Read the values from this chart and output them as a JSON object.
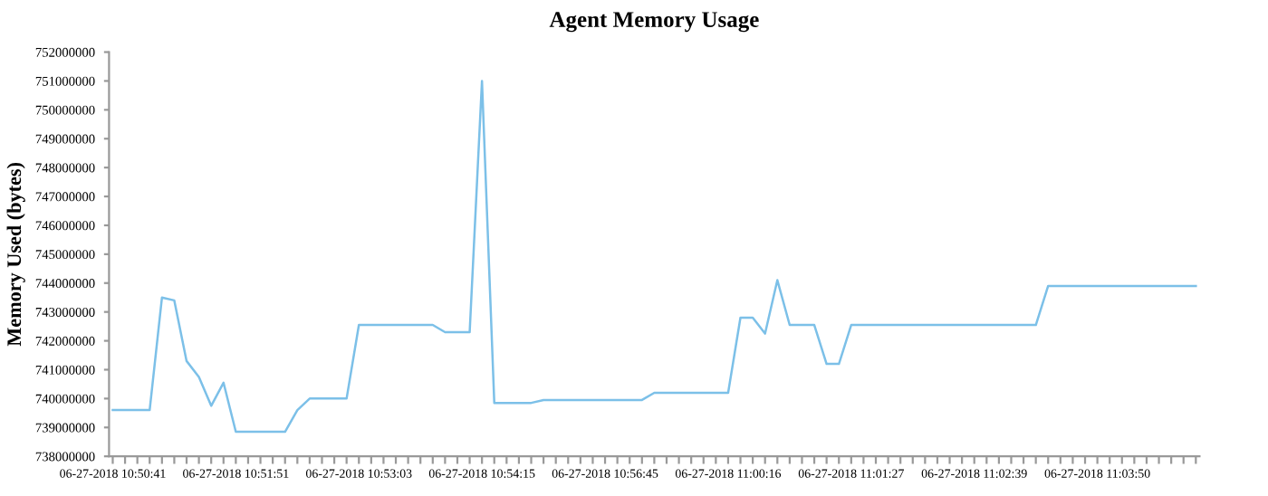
{
  "chart_data": {
    "type": "line",
    "title": "Agent Memory Usage",
    "ylabel": "Memory Used (bytes)",
    "categories": [
      "06-27-2018 10:50:41",
      null,
      null,
      null,
      null,
      null,
      null,
      null,
      null,
      null,
      "06-27-2018 10:51:51",
      null,
      null,
      null,
      null,
      null,
      null,
      null,
      null,
      null,
      "06-27-2018 10:53:03",
      null,
      null,
      null,
      null,
      null,
      null,
      null,
      null,
      null,
      "06-27-2018 10:54:15",
      null,
      null,
      null,
      null,
      null,
      null,
      null,
      null,
      null,
      "06-27-2018 10:56:45",
      null,
      null,
      null,
      null,
      null,
      null,
      null,
      null,
      null,
      "06-27-2018 11:00:16",
      null,
      null,
      null,
      null,
      null,
      null,
      null,
      null,
      null,
      "06-27-2018 11:01:27",
      null,
      null,
      null,
      null,
      null,
      null,
      null,
      null,
      null,
      "06-27-2018 11:02:39",
      null,
      null,
      null,
      null,
      null,
      null,
      null,
      null,
      null,
      "06-27-2018 11:03:50",
      null,
      null,
      null,
      null,
      null,
      null,
      null,
      null
    ],
    "series": [
      {
        "color": "#7cc0e8",
        "values": [
          739600000,
          739600000,
          739600000,
          739600000,
          743500000,
          743400000,
          741300000,
          740750000,
          739750000,
          740550000,
          738850000,
          738850000,
          738850000,
          738850000,
          738850000,
          739600000,
          740000000,
          740000000,
          740000000,
          740000000,
          742550000,
          742550000,
          742550000,
          742550000,
          742550000,
          742550000,
          742550000,
          742300000,
          742300000,
          742300000,
          751000000,
          739850000,
          739850000,
          739850000,
          739850000,
          739950000,
          739950000,
          739950000,
          739950000,
          739950000,
          739950000,
          739950000,
          739950000,
          739950000,
          740200000,
          740200000,
          740200000,
          740200000,
          740200000,
          740200000,
          740200000,
          742800000,
          742800000,
          742250000,
          744100000,
          742550000,
          742550000,
          742550000,
          741200000,
          741200000,
          742550000,
          742550000,
          742550000,
          742550000,
          742550000,
          742550000,
          742550000,
          742550000,
          742550000,
          742550000,
          742550000,
          742550000,
          742550000,
          742550000,
          742550000,
          742550000,
          743900000,
          743900000,
          743900000,
          743900000,
          743900000,
          743900000,
          743900000,
          743900000,
          743900000,
          743900000,
          743900000,
          743900000,
          743900000
        ]
      }
    ],
    "ylim": [
      738000000,
      752000000
    ],
    "yticks": [
      738000000,
      739000000,
      740000000,
      741000000,
      742000000,
      743000000,
      744000000,
      745000000,
      746000000,
      747000000,
      748000000,
      749000000,
      750000000,
      751000000,
      752000000
    ],
    "grid": false,
    "marker": "none",
    "line_style": "solid"
  }
}
